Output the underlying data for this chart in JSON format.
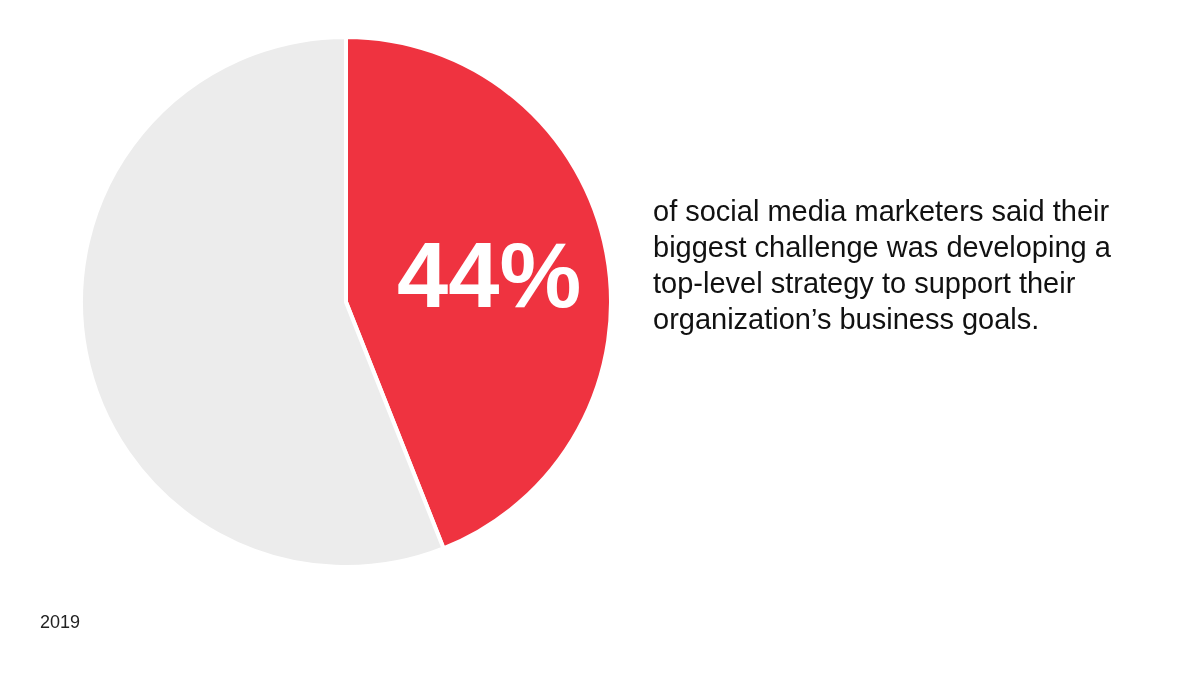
{
  "chart_data": {
    "type": "pie",
    "categories": [
      null,
      null
    ],
    "values": [
      44,
      56
    ],
    "colors": [
      "#ef3340",
      "#ececec"
    ],
    "value_labels": [
      "44%",
      null
    ],
    "annotations": [
      "of social media marketers said their biggest challenge was developing a top-level strategy to support their organization’s business goals.",
      "2019"
    ],
    "legend": false
  }
}
